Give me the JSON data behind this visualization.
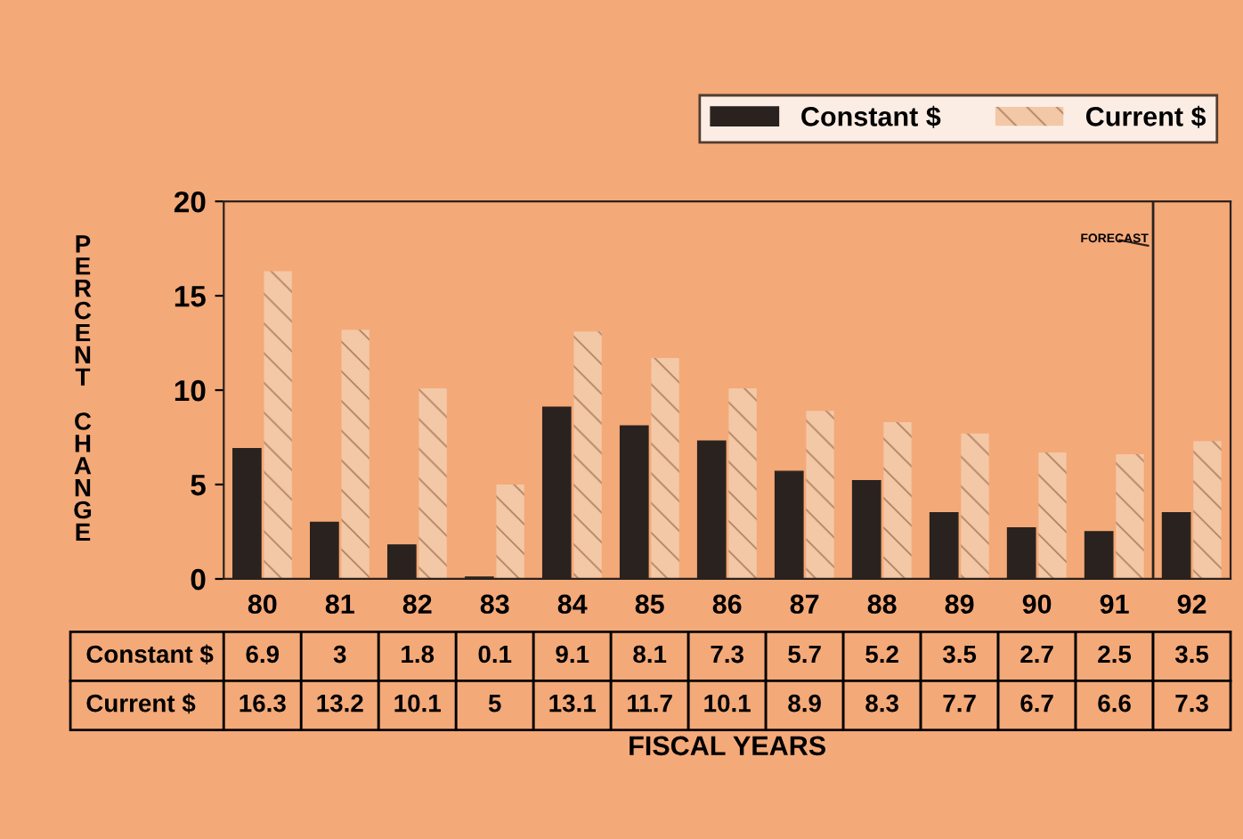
{
  "chart_data": {
    "type": "bar",
    "xlabel": "FISCAL YEARS",
    "ylabel": "PERCENT CHANGE",
    "categories": [
      "80",
      "81",
      "82",
      "83",
      "84",
      "85",
      "86",
      "87",
      "88",
      "89",
      "90",
      "91",
      "92"
    ],
    "series": [
      {
        "name": "Constant $",
        "color": "#2a221e",
        "values": [
          6.9,
          3,
          1.8,
          0.1,
          9.1,
          8.1,
          7.3,
          5.7,
          5.2,
          3.5,
          2.7,
          2.5,
          3.5
        ]
      },
      {
        "name": "Current $",
        "color": "#f3c8a6",
        "values": [
          16.3,
          13.2,
          10.1,
          5,
          13.1,
          11.7,
          10.1,
          8.9,
          8.3,
          7.7,
          6.7,
          6.6,
          7.3
        ]
      }
    ],
    "ylim": [
      0,
      20
    ],
    "yticks": [
      0,
      5,
      10,
      15,
      20
    ],
    "grid": false,
    "legend": "top right",
    "data_labels": true,
    "ref_lines": [
      {
        "axis": "x",
        "value": "92",
        "color": "#2a221e"
      }
    ],
    "annotations": [
      "FORECAST"
    ]
  }
}
